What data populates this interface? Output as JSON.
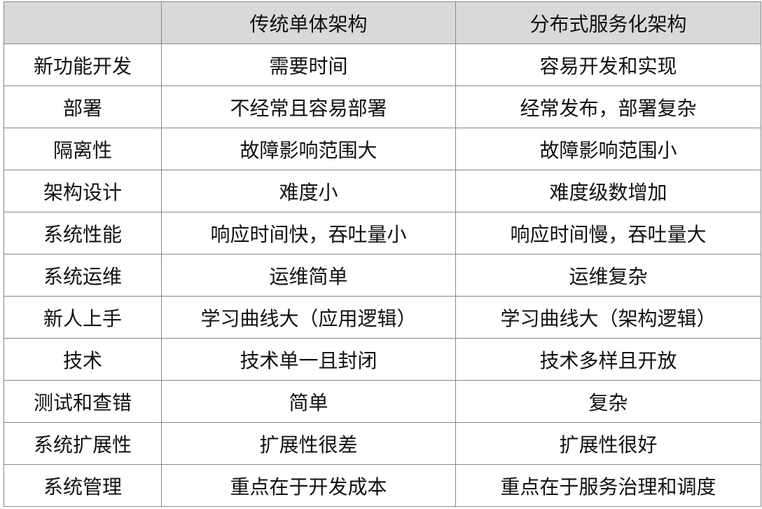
{
  "table": {
    "header": [
      "传统单体架构",
      "分布式服务化架构"
    ],
    "rows": [
      [
        "新功能开发",
        "需要时间",
        "容易开发和实现"
      ],
      [
        "部署",
        "不经常且容易部署",
        "经常发布，部署复杂"
      ],
      [
        "隔离性",
        "故障影响范围大",
        "故障影响范围小"
      ],
      [
        "架构设计",
        "难度小",
        "难度级数增加"
      ],
      [
        "系统性能",
        "响应时间快，吞吐量小",
        "响应时间慢，吞吐量大"
      ],
      [
        "系统运维",
        "运维简单",
        "运维复杂"
      ],
      [
        "新人上手",
        "学习曲线大（应用逻辑）",
        "学习曲线大（架构逻辑）"
      ],
      [
        "技术",
        "技术单一且封闭",
        "技术多样且开放"
      ],
      [
        "测试和查错",
        "简单",
        "复杂"
      ],
      [
        "系统扩展性",
        "扩展性很差",
        "扩展性很好"
      ],
      [
        "系统管理",
        "重点在于开发成本",
        "重点在于服务治理和调度"
      ]
    ]
  }
}
